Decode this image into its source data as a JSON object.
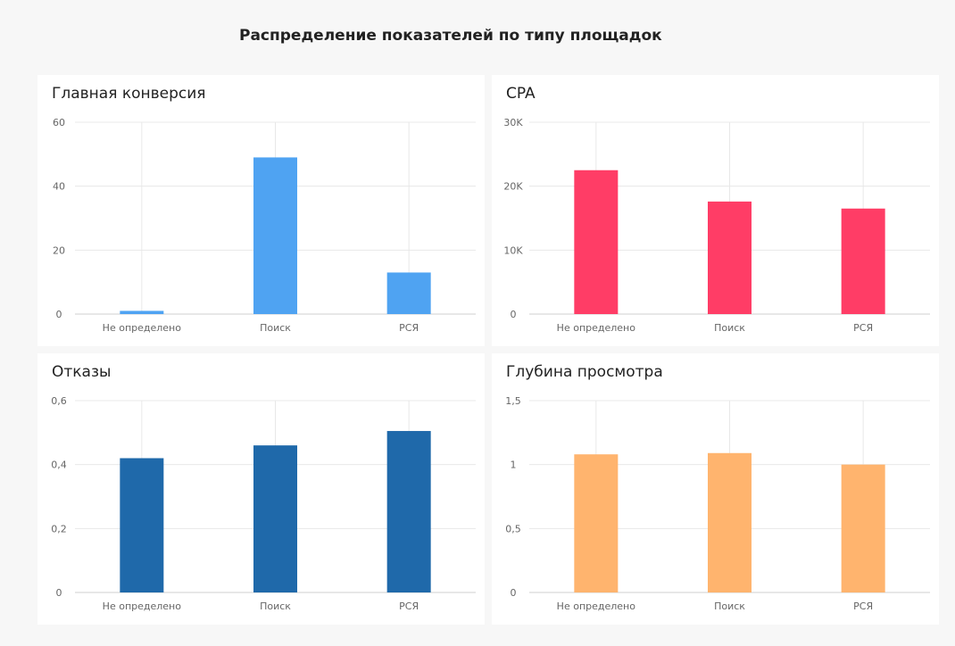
{
  "page": {
    "title": "Распределение показателей по типу площадок"
  },
  "chart_data": [
    {
      "type": "bar",
      "title": "Главная конверсия",
      "categories": [
        "Не определено",
        "Поиск",
        "РСЯ"
      ],
      "values": [
        1,
        49,
        13
      ],
      "ylim": [
        0,
        60
      ],
      "yticks": [
        0,
        20,
        40,
        60
      ],
      "ytick_labels": [
        "0",
        "20",
        "40",
        "60"
      ],
      "color": "#4fa3f2",
      "grid": true
    },
    {
      "type": "bar",
      "title": "CPA",
      "categories": [
        "Не определено",
        "Поиск",
        "РСЯ"
      ],
      "values": [
        22500,
        17600,
        16500
      ],
      "ylim": [
        0,
        30000
      ],
      "yticks": [
        0,
        10000,
        20000,
        30000
      ],
      "ytick_labels": [
        "0",
        "10K",
        "20K",
        "30K"
      ],
      "color": "#ff3d66",
      "grid": true
    },
    {
      "type": "bar",
      "title": "Отказы",
      "categories": [
        "Не определено",
        "Поиск",
        "РСЯ"
      ],
      "values": [
        0.42,
        0.46,
        0.505
      ],
      "ylim": [
        0,
        0.6
      ],
      "yticks": [
        0,
        0.2,
        0.4,
        0.6
      ],
      "ytick_labels": [
        "0",
        "0,2",
        "0,4",
        "0,6"
      ],
      "color": "#1f69aa",
      "grid": true
    },
    {
      "type": "bar",
      "title": "Глубина просмотра",
      "categories": [
        "Не определено",
        "Поиск",
        "РСЯ"
      ],
      "values": [
        1.08,
        1.09,
        1.0
      ],
      "ylim": [
        0,
        1.5
      ],
      "yticks": [
        0,
        0.5,
        1,
        1.5
      ],
      "ytick_labels": [
        "0",
        "0,5",
        "1",
        "1,5"
      ],
      "color": "#ffb46e",
      "grid": true
    }
  ]
}
